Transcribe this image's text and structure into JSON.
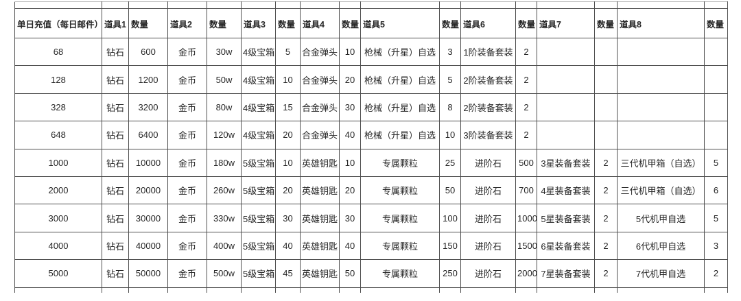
{
  "colors": {
    "border": "#4d4d4d",
    "text": "#262626",
    "background": "#ffffff"
  },
  "table": {
    "columns": [
      "单日充值（每日邮件）",
      "道具1",
      "数量",
      "道具2",
      "数量",
      "道具3",
      "数量",
      "道具4",
      "数量",
      "道具5",
      "数量",
      "道具6",
      "数量",
      "道具7",
      "数量",
      "道具8",
      "数量"
    ],
    "rows": [
      [
        "68",
        "钻石",
        "600",
        "金币",
        "30w",
        "4级宝箱",
        "5",
        "合金弹头",
        "10",
        "枪械（升星）自选",
        "3",
        "1阶装备套装",
        "2",
        "",
        "",
        "",
        ""
      ],
      [
        "128",
        "钻石",
        "1200",
        "金币",
        "50w",
        "4级宝箱",
        "10",
        "合金弹头",
        "20",
        "枪械（升星）自选",
        "5",
        "2阶装备套装",
        "2",
        "",
        "",
        "",
        ""
      ],
      [
        "328",
        "钻石",
        "3200",
        "金币",
        "80w",
        "4级宝箱",
        "15",
        "合金弹头",
        "30",
        "枪械（升星）自选",
        "8",
        "2阶装备套装",
        "2",
        "",
        "",
        "",
        ""
      ],
      [
        "648",
        "钻石",
        "6400",
        "金币",
        "120w",
        "4级宝箱",
        "20",
        "合金弹头",
        "40",
        "枪械（升星）自选",
        "10",
        "3阶装备套装",
        "2",
        "",
        "",
        "",
        ""
      ],
      [
        "1000",
        "钻石",
        "10000",
        "金币",
        "180w",
        "5级宝箱",
        "10",
        "英雄钥匙",
        "10",
        "专属颗粒",
        "25",
        "进阶石",
        "500",
        "3星装备套装",
        "2",
        "三代机甲箱（自选）",
        "5"
      ],
      [
        "2000",
        "钻石",
        "20000",
        "金币",
        "260w",
        "5级宝箱",
        "20",
        "英雄钥匙",
        "20",
        "专属颗粒",
        "50",
        "进阶石",
        "700",
        "4星装备套装",
        "2",
        "三代机甲箱（自选）",
        "6"
      ],
      [
        "3000",
        "钻石",
        "30000",
        "金币",
        "330w",
        "5级宝箱",
        "30",
        "英雄钥匙",
        "30",
        "专属颗粒",
        "100",
        "进阶石",
        "1000",
        "5星装备套装",
        "2",
        "5代机甲自选",
        "5"
      ],
      [
        "4000",
        "钻石",
        "40000",
        "金币",
        "400w",
        "5级宝箱",
        "40",
        "英雄钥匙",
        "40",
        "专属颗粒",
        "150",
        "进阶石",
        "1500",
        "6星装备套装",
        "2",
        "6代机甲自选",
        "3"
      ],
      [
        "5000",
        "钻石",
        "50000",
        "金币",
        "500w",
        "5级宝箱",
        "45",
        "英雄钥匙",
        "50",
        "专属颗粒",
        "250",
        "进阶石",
        "2000",
        "7星装备套装",
        "2",
        "7代机甲自选",
        "2"
      ]
    ]
  }
}
